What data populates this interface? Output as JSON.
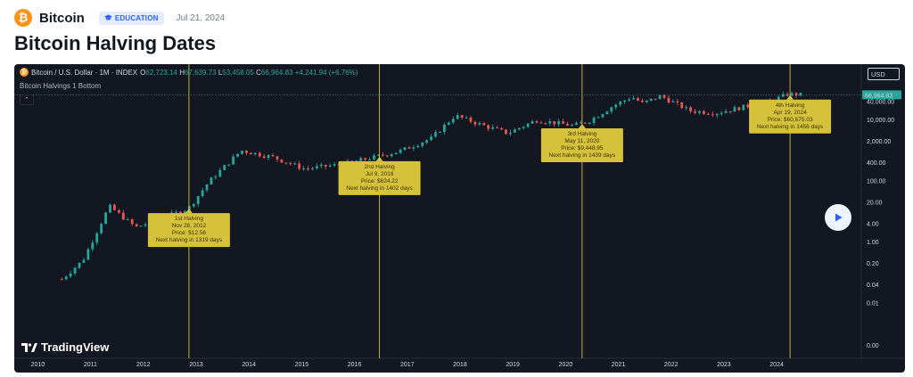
{
  "header": {
    "logo_glyph": "₿",
    "site_name": "Bitcoin",
    "badge": "EDUCATION",
    "date": "Jul 21, 2024"
  },
  "title": "Bitcoin Halving Dates",
  "chart": {
    "symbol": "Bitcoin / U.S. Dollar · 1M · INDEX",
    "ohlc": {
      "o": "62,723.14",
      "h": "67,639.73",
      "l": "53,458.05",
      "c": "66,964.83",
      "change": "+4,241.94 (+6.76%)"
    },
    "indicator": "Bitcoin Halvings 1 Bottom",
    "collapse_glyph": "⌃",
    "currency": "USD",
    "current_price_label": "66,964.83",
    "watermark": "TradingView",
    "colors": {
      "background": "#131722",
      "up": "#26a69a",
      "down": "#ef5350",
      "halving_line": "#d6c13a",
      "annotation": "#d6c13a"
    }
  },
  "chart_data": {
    "type": "candlestick",
    "x_ticks": [
      "2010",
      "2011",
      "2012",
      "2013",
      "2014",
      "2015",
      "2016",
      "2017",
      "2018",
      "2019",
      "2020",
      "2021",
      "2022",
      "2023",
      "2024"
    ],
    "y_ticks": [
      "40,000.00",
      "10,000.00",
      "2,000.00",
      "400.00",
      "100.00",
      "20.00",
      "4.00",
      "1.00",
      "0.20",
      "0.04",
      "0.01",
      "0.00"
    ],
    "y_scale": "log",
    "series_approx": [
      {
        "t": 2010.5,
        "v": 0.06
      },
      {
        "t": 2010.9,
        "v": 0.25
      },
      {
        "t": 2011.4,
        "v": 15
      },
      {
        "t": 2011.9,
        "v": 3
      },
      {
        "t": 2012.5,
        "v": 7
      },
      {
        "t": 2012.9,
        "v": 12.56
      },
      {
        "t": 2013.3,
        "v": 100
      },
      {
        "t": 2013.9,
        "v": 1000
      },
      {
        "t": 2014.5,
        "v": 600
      },
      {
        "t": 2015.1,
        "v": 250
      },
      {
        "t": 2015.8,
        "v": 350
      },
      {
        "t": 2016.5,
        "v": 650
      },
      {
        "t": 2016.9,
        "v": 950
      },
      {
        "t": 2017.5,
        "v": 2500
      },
      {
        "t": 2017.95,
        "v": 14000
      },
      {
        "t": 2018.5,
        "v": 6500
      },
      {
        "t": 2018.95,
        "v": 3700
      },
      {
        "t": 2019.5,
        "v": 10000
      },
      {
        "t": 2020.2,
        "v": 6500
      },
      {
        "t": 2020.5,
        "v": 9500
      },
      {
        "t": 2020.95,
        "v": 29000
      },
      {
        "t": 2021.3,
        "v": 57000
      },
      {
        "t": 2021.5,
        "v": 35000
      },
      {
        "t": 2021.85,
        "v": 61000
      },
      {
        "t": 2022.4,
        "v": 20000
      },
      {
        "t": 2022.9,
        "v": 17000
      },
      {
        "t": 2023.5,
        "v": 29000
      },
      {
        "t": 2023.95,
        "v": 42000
      },
      {
        "t": 2024.25,
        "v": 70000
      },
      {
        "t": 2024.55,
        "v": 66964.83
      }
    ],
    "halvings": [
      {
        "t": 2012.91,
        "title": "1st Halving",
        "date": "Nov 28, 2012",
        "price": "Price: $12.56",
        "next": "Next halving in 1319 days"
      },
      {
        "t": 2016.52,
        "title": "2nd Halving",
        "date": "Jul 9, 2016",
        "price": "Price: $624.22",
        "next": "Next halving in 1402 days"
      },
      {
        "t": 2020.36,
        "title": "3rd Halving",
        "date": "May 11, 2020",
        "price": "Price: $9,448.95",
        "next": "Next halving in 1439 days"
      },
      {
        "t": 2024.3,
        "title": "4th Halving",
        "date": "Apr 19, 2024",
        "price": "Price: $60,675.03",
        "next": "Next halving in 1456 days"
      }
    ]
  },
  "play_icon": "play-icon"
}
